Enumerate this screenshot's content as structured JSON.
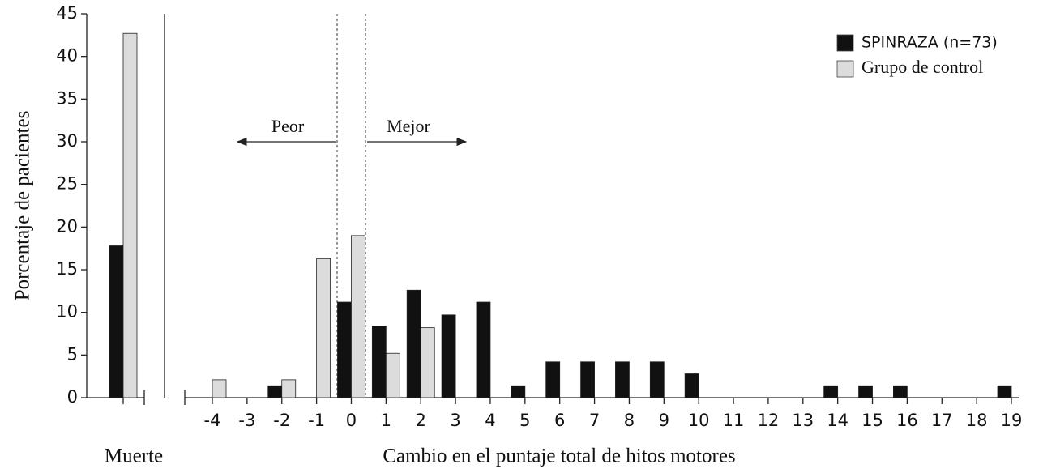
{
  "chart_data": {
    "type": "bar",
    "ylabel": "Porcentaje de pacientes",
    "xlabel": "Cambio en el puntaje total de hitos motores",
    "categories": [
      "Muerte",
      "-4",
      "-3",
      "-2",
      "-1",
      "0",
      "1",
      "2",
      "3",
      "4",
      "5",
      "6",
      "7",
      "8",
      "9",
      "10",
      "11",
      "12",
      "13",
      "14",
      "15",
      "16",
      "17",
      "18",
      "19"
    ],
    "series": [
      {
        "name": "SPINRAZA (n=73)",
        "color": "#111111",
        "values": [
          17.8,
          0,
          0,
          1.4,
          0,
          11.2,
          8.4,
          12.6,
          9.7,
          11.2,
          1.4,
          4.2,
          4.2,
          4.2,
          4.2,
          2.8,
          0,
          0,
          0,
          1.4,
          1.4,
          1.4,
          0,
          0,
          1.4
        ]
      },
      {
        "name": "Grupo de control",
        "color": "#dcdcdc",
        "values": [
          42.7,
          2.1,
          0,
          2.1,
          16.3,
          19,
          5.2,
          8.2,
          0,
          0,
          0,
          0,
          0,
          0,
          0,
          0,
          0,
          0,
          0,
          0,
          0,
          0,
          0,
          0,
          0
        ]
      }
    ],
    "annotations": [
      "Peor",
      "Mejor"
    ],
    "ylim": [
      0,
      45
    ],
    "yticks": [
      0,
      5,
      10,
      15,
      20,
      25,
      30,
      35,
      40,
      45
    ],
    "legend": "upper right"
  }
}
